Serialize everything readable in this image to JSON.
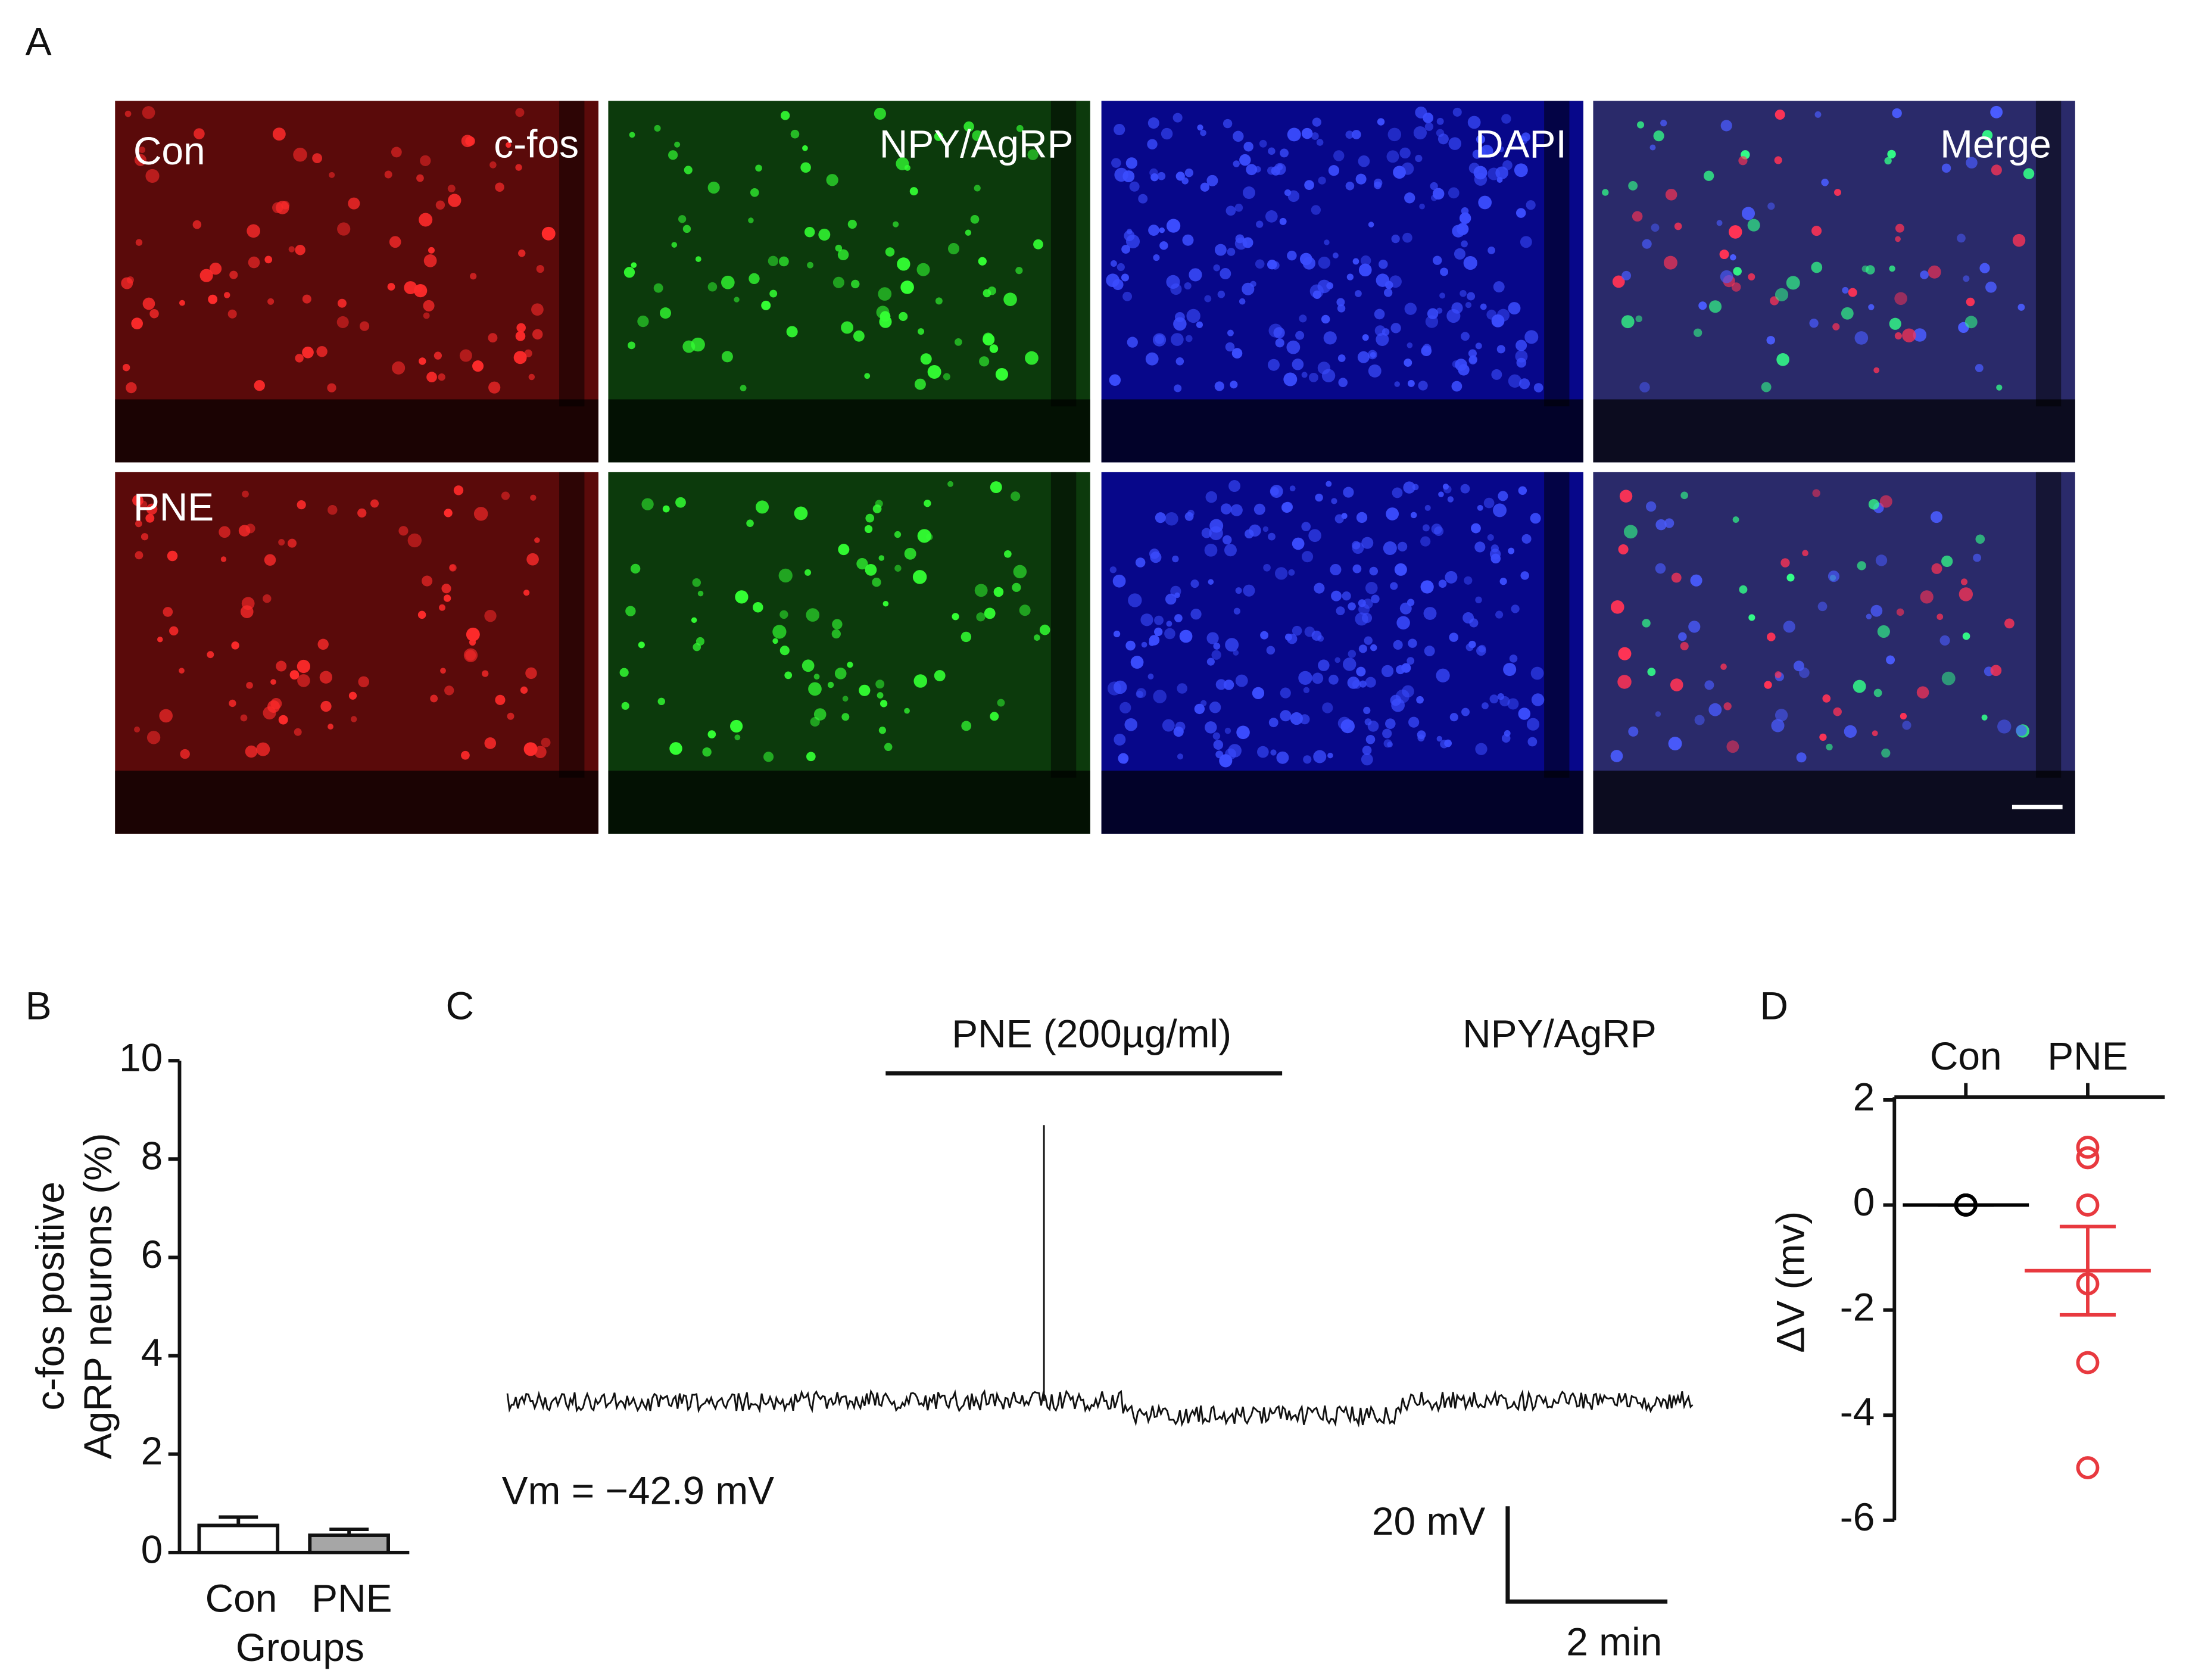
{
  "panel_labels": [
    "A",
    "B",
    "C",
    "D"
  ],
  "images": {
    "row_labels": [
      "Con",
      "PNE"
    ],
    "column_labels": [
      "c-fos",
      "NPY/AgRP",
      "DAPI",
      "Merge"
    ]
  },
  "trace": {
    "drug_label": "PNE (200µg/ml)",
    "cell_label": "NPY/AgRP",
    "vm_label": "Vm = −42.9 mV",
    "scale_y_label": "20 mV",
    "scale_x_label": "2 min"
  },
  "chart_data": [
    {
      "type": "bar",
      "ylabel": [
        "c-fos positive",
        "AgRP neurons (%)"
      ],
      "xlabel": "Groups",
      "categories": [
        "Con",
        "PNE"
      ],
      "values": [
        0.55,
        0.35
      ],
      "errors": [
        0.17,
        0.12
      ],
      "colors": [
        "#ffffff",
        "#a6a6a6"
      ],
      "ylim": [
        0,
        10
      ],
      "yticks": [
        0,
        2,
        4,
        6,
        8,
        10
      ]
    },
    {
      "type": "scatter",
      "ylabel": "ΔV (mv)",
      "categories": [
        "Con",
        "PNE"
      ],
      "points": [
        [
          0,
          0,
          0,
          0,
          0,
          0
        ],
        [
          1.1,
          0.9,
          0,
          -1.5,
          -3,
          -5
        ]
      ],
      "means": [
        0,
        -1.25
      ],
      "sems": [
        0,
        0.84
      ],
      "colors": [
        "#000000",
        "#e8393f"
      ],
      "ylim": [
        -6,
        2
      ],
      "yticks": [
        -6,
        -4,
        -2,
        0,
        2
      ]
    }
  ]
}
